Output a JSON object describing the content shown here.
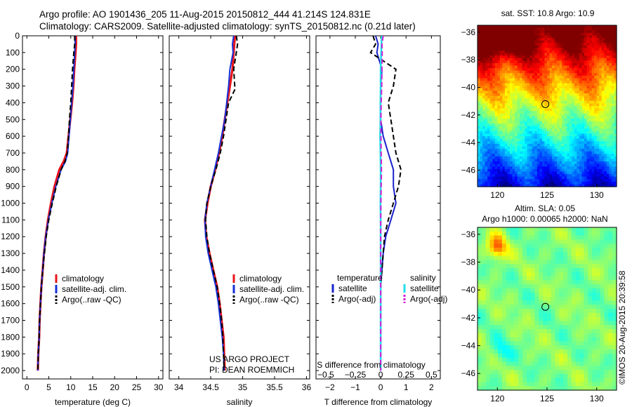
{
  "header": {
    "title_line1": "Argo profile: AO 1901436_205 11-Aug-2015 20150812_444 41.214S 124.831E",
    "title_line2": "Climatology: CARS2009. Satellite-adjusted climatology: synTS_20150812.nc (0.21d later)"
  },
  "colors": {
    "climatology": "#e8141a",
    "satellite": "#1530d8",
    "argo": "#000000",
    "t_satellite": "#1a22cc",
    "s_satellite": "#22dde8",
    "s_argo": "#d21fd6"
  },
  "chart_data": [
    {
      "type": "line",
      "id": "temperature",
      "xlabel": "temperature (deg C)",
      "ylabel": "",
      "xlim": [
        -1,
        31
      ],
      "ylim": [
        2050,
        0
      ],
      "xticks": [
        0,
        5,
        10,
        15,
        20,
        25,
        30
      ],
      "yticks": [
        0,
        100,
        200,
        300,
        400,
        500,
        600,
        700,
        800,
        900,
        1000,
        1100,
        1200,
        1300,
        1400,
        1500,
        1600,
        1700,
        1800,
        1900,
        2000
      ],
      "grid": false,
      "legend": {
        "position": "bottom-right",
        "entries": [
          "climatology",
          "satellite-adj. clim.",
          "Argo(..raw -QC)"
        ]
      },
      "series": [
        {
          "name": "climatology",
          "style": "solid",
          "color_key": "climatology",
          "x": [
            11.2,
            11.2,
            11.1,
            10.8,
            10.6,
            10.3,
            9.9,
            9.5,
            9.1,
            8.4,
            7.4,
            6.3,
            5.5,
            4.8,
            4.3,
            3.9,
            3.6,
            3.3,
            3.1,
            2.9,
            2.8,
            2.6,
            2.5
          ],
          "y": [
            0,
            50,
            100,
            200,
            300,
            400,
            500,
            600,
            700,
            750,
            800,
            900,
            1000,
            1100,
            1200,
            1300,
            1400,
            1500,
            1600,
            1700,
            1800,
            1900,
            2000
          ]
        },
        {
          "name": "satellite-adj. clim.",
          "style": "solid",
          "color_key": "satellite",
          "x": [
            11.0,
            11.0,
            10.9,
            10.7,
            10.5,
            10.2,
            9.9,
            9.6,
            9.3,
            8.8,
            7.8,
            6.6,
            5.7,
            4.9,
            4.3,
            3.9,
            3.6,
            3.3,
            3.1,
            2.9,
            2.8,
            2.6,
            2.5
          ],
          "y": [
            0,
            50,
            100,
            200,
            300,
            400,
            500,
            600,
            700,
            750,
            800,
            900,
            1000,
            1100,
            1200,
            1300,
            1400,
            1500,
            1600,
            1700,
            1800,
            1900,
            2000
          ]
        },
        {
          "name": "Argo(..raw -QC)",
          "style": "dashed",
          "color_key": "argo",
          "x": [
            10.9,
            10.9,
            10.7,
            10.4,
            10.2,
            10.0,
            9.7,
            9.5,
            9.2,
            8.7,
            7.8,
            6.7,
            5.8,
            5.0,
            4.4,
            4.0,
            3.6,
            3.3,
            3.1,
            2.9,
            2.8,
            2.6,
            2.5
          ],
          "y": [
            0,
            50,
            100,
            200,
            300,
            400,
            500,
            600,
            700,
            750,
            800,
            900,
            1000,
            1100,
            1200,
            1300,
            1400,
            1500,
            1600,
            1700,
            1800,
            1900,
            2000
          ]
        }
      ]
    },
    {
      "type": "line",
      "id": "salinity",
      "xlabel": "salinity",
      "xlim": [
        33.85,
        36.05
      ],
      "ylim": [
        2050,
        0
      ],
      "xticks": [
        34,
        34.5,
        35,
        35.5,
        36
      ],
      "xticklabels": [
        "34",
        "34.5",
        "35",
        "35.5",
        "36"
      ],
      "grid": false,
      "legend": {
        "position": "bottom-right",
        "entries": [
          "climatology",
          "satellite-adj. clim.",
          "Argo(..raw -QC)"
        ]
      },
      "series": [
        {
          "name": "climatology",
          "style": "solid",
          "color_key": "climatology",
          "x": [
            34.88,
            34.87,
            34.86,
            34.84,
            34.8,
            34.76,
            34.72,
            34.68,
            34.63,
            34.57,
            34.5,
            34.45,
            34.41,
            34.43,
            34.48,
            34.54,
            34.6,
            34.64,
            34.67,
            34.7,
            34.71,
            34.72
          ],
          "y": [
            0,
            50,
            100,
            200,
            300,
            400,
            500,
            600,
            700,
            800,
            900,
            1000,
            1100,
            1200,
            1300,
            1400,
            1500,
            1600,
            1700,
            1800,
            1900,
            2000
          ]
        },
        {
          "name": "satellite-adj. clim.",
          "style": "solid",
          "color_key": "satellite",
          "x": [
            34.86,
            34.84,
            34.85,
            34.8,
            34.78,
            34.75,
            34.72,
            34.67,
            34.62,
            34.56,
            34.5,
            34.44,
            34.41,
            34.42,
            34.46,
            34.52,
            34.58,
            34.62,
            34.65,
            34.68,
            34.7,
            34.71
          ],
          "y": [
            0,
            50,
            100,
            200,
            300,
            400,
            500,
            600,
            700,
            800,
            900,
            1000,
            1100,
            1200,
            1300,
            1400,
            1500,
            1600,
            1700,
            1800,
            1900,
            2000
          ]
        },
        {
          "name": "Argo(..raw -QC)",
          "style": "dashed",
          "color_key": "argo",
          "x": [
            34.9,
            34.92,
            34.9,
            34.86,
            34.88,
            34.78,
            34.74,
            34.7,
            34.65,
            34.58,
            34.5,
            34.44,
            34.42,
            34.44,
            34.48,
            34.54,
            34.6,
            34.64,
            34.67,
            34.69,
            34.7,
            34.71
          ],
          "y": [
            0,
            50,
            100,
            200,
            320,
            400,
            500,
            600,
            700,
            800,
            900,
            1000,
            1100,
            1200,
            1300,
            1400,
            1500,
            1600,
            1700,
            1800,
            1900,
            2000
          ]
        }
      ],
      "annotation": [
        "US ARGO PROJECT",
        "PI: DEAN ROEMMICH"
      ]
    },
    {
      "type": "line",
      "id": "difference",
      "xlabel": "T difference from climatology",
      "xlabel_top": "S difference from climatology",
      "xlim": [
        -2.55,
        2.35
      ],
      "ylim": [
        2050,
        0
      ],
      "xticks": [
        -2,
        -1,
        0,
        1,
        2
      ],
      "xticklabels": [
        "−2",
        "−1",
        "0",
        "1",
        "2"
      ],
      "s_ticklabels": [
        "−0.5",
        "−0.25",
        "0",
        "0.25",
        "0.5"
      ],
      "grid": false,
      "legend": {
        "position": "bottom",
        "temperature_header": "temperature",
        "salinity_header": "salinity",
        "entries": [
          "satellite",
          "Argo(-adj)",
          "satellite",
          "Argo(-adj)"
        ]
      },
      "series": [
        {
          "name": "temperature satellite",
          "style": "solid",
          "color_key": "t_satellite",
          "x": [
            -0.2,
            -0.1,
            -0.15,
            0.05,
            0.0,
            0.0,
            0.0,
            0.1,
            0.3,
            0.5,
            0.5,
            0.6,
            0.4,
            0.2,
            0.1,
            0.05,
            0.0,
            0.0,
            0.0,
            0.0,
            0.0
          ],
          "y": [
            0,
            50,
            100,
            200,
            300,
            400,
            500,
            600,
            700,
            800,
            900,
            1000,
            1100,
            1200,
            1300,
            1400,
            1500,
            1600,
            1700,
            1800,
            2000
          ]
        },
        {
          "name": "temperature Argo(-adj)",
          "style": "dashed",
          "color_key": "argo",
          "x": [
            -0.3,
            -0.2,
            -0.4,
            0.6,
            0.5,
            0.3,
            0.4,
            0.5,
            0.6,
            0.8,
            0.7,
            0.5,
            0.3,
            0.15,
            0.1,
            0.05,
            0.0,
            0.0,
            0.0,
            0.0
          ],
          "y": [
            0,
            50,
            100,
            200,
            300,
            400,
            500,
            600,
            700,
            800,
            900,
            1000,
            1100,
            1200,
            1300,
            1400,
            1500,
            1600,
            1800,
            2000
          ]
        },
        {
          "name": "salinity satellite",
          "style": "solid",
          "color_key": "s_satellite",
          "x": [
            0.04,
            0.03,
            0.02,
            0.0,
            0.0,
            -0.01,
            -0.01,
            -0.02,
            -0.01,
            0.0,
            0.0,
            -0.01,
            0.0,
            0.0,
            0.0,
            0.0,
            0.0,
            0.0,
            0.0
          ],
          "y": [
            0,
            50,
            100,
            200,
            300,
            400,
            500,
            600,
            700,
            800,
            900,
            1000,
            1100,
            1200,
            1300,
            1400,
            1500,
            1800,
            2000
          ]
        },
        {
          "name": "salinity Argo(-adj)",
          "style": "dashed",
          "color_key": "s_argo",
          "x": [
            0.1,
            0.05,
            0.06,
            0.05,
            0.04,
            0.02,
            0.01,
            0.01,
            0.02,
            0.03,
            0.02,
            0.01,
            0.0,
            0.0,
            0.0,
            0.0
          ],
          "y": [
            0,
            50,
            100,
            200,
            300,
            400,
            500,
            600,
            700,
            800,
            900,
            1000,
            1100,
            1200,
            1500,
            2000
          ]
        }
      ]
    },
    {
      "type": "heatmap",
      "id": "sst_map",
      "title": "sat. SST: 10.8  Argo: 10.9",
      "xlim": [
        118,
        132
      ],
      "ylim": [
        -47.2,
        -35.5
      ],
      "xticks": [
        120,
        125,
        130
      ],
      "yticks": [
        -36,
        -38,
        -40,
        -42,
        -44,
        -46
      ],
      "colormap": "jet",
      "marker": {
        "lon": 124.831,
        "lat": -41.214
      }
    },
    {
      "type": "heatmap",
      "id": "sla_map",
      "title_line1": "Altim. SLA: 0.05",
      "title_line2": "Argo h1000: 0.00065 h2000: NaN",
      "xlim": [
        118,
        132
      ],
      "ylim": [
        -47.2,
        -35.5
      ],
      "xticks": [
        120,
        125,
        130
      ],
      "yticks": [
        -36,
        -38,
        -40,
        -42,
        -44,
        -46
      ],
      "colormap": "jet",
      "marker": {
        "lon": 124.831,
        "lat": -41.214
      }
    }
  ],
  "footer": {
    "credit": "©IMOS 20-Aug-2015 20:39:58"
  }
}
